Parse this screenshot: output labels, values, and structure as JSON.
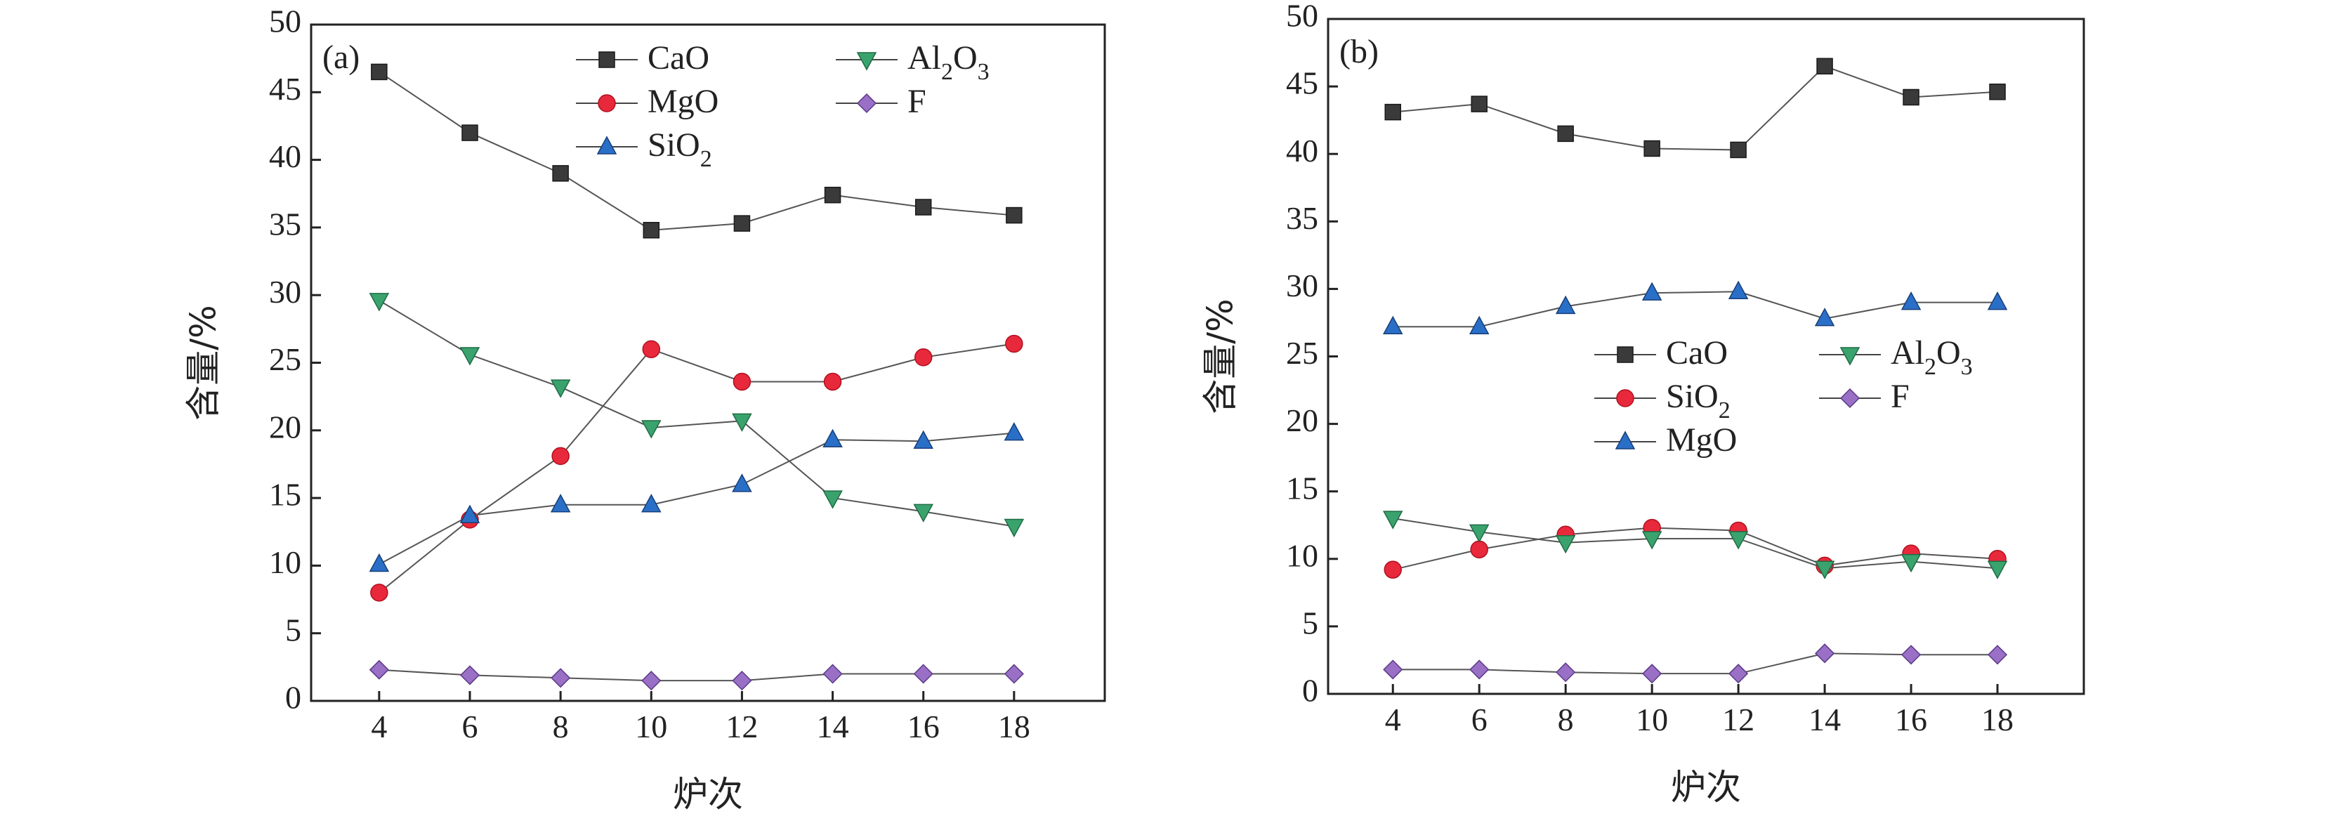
{
  "chart_data": [
    {
      "type": "line",
      "panel_label": "(a)",
      "xlabel": "炉次",
      "ylabel": "含量/%",
      "x": [
        4,
        6,
        8,
        10,
        12,
        14,
        16,
        18
      ],
      "xticks": [
        "4",
        "6",
        "8",
        "10",
        "12",
        "14",
        "16",
        "18"
      ],
      "yticks": [
        "0",
        "5",
        "10",
        "15",
        "20",
        "25",
        "30",
        "35",
        "40",
        "45",
        "50"
      ],
      "xlim": [
        2.5,
        20
      ],
      "ylim": [
        0,
        50
      ],
      "legend_position": "top-center",
      "series": [
        {
          "name": "CaO",
          "sub": "",
          "marker": "square",
          "color": "#3a3a3a",
          "values": [
            46.5,
            42.0,
            39.0,
            34.8,
            35.3,
            37.4,
            36.5,
            35.9
          ]
        },
        {
          "name": "MgO",
          "sub": "",
          "marker": "circle",
          "color": "#e8293b",
          "values": [
            8.0,
            13.4,
            18.1,
            26.0,
            23.6,
            23.6,
            25.4,
            26.4
          ]
        },
        {
          "name": "SiO",
          "sub": "2",
          "marker": "triangle-up",
          "color": "#2a6fc7",
          "values": [
            10.1,
            13.7,
            14.5,
            14.5,
            16.0,
            19.3,
            19.2,
            19.8
          ]
        },
        {
          "name": "Al",
          "sub": "2",
          "sub_tail": "O",
          "sub2": "3",
          "marker": "triangle-down",
          "color": "#3aa36d",
          "values": [
            29.6,
            25.6,
            23.2,
            20.2,
            20.7,
            15.0,
            14.0,
            12.9
          ]
        },
        {
          "name": "F",
          "sub": "",
          "marker": "diamond",
          "color": "#9a6fc6",
          "values": [
            2.3,
            1.9,
            1.7,
            1.5,
            1.5,
            2.0,
            2.0,
            2.0
          ]
        }
      ]
    },
    {
      "type": "line",
      "panel_label": "(b)",
      "xlabel": "炉次",
      "ylabel": "含量/%",
      "x": [
        4,
        6,
        8,
        10,
        12,
        14,
        16,
        18
      ],
      "xticks": [
        "4",
        "6",
        "8",
        "10",
        "12",
        "14",
        "16",
        "18"
      ],
      "yticks": [
        "0",
        "5",
        "10",
        "15",
        "20",
        "25",
        "30",
        "35",
        "40",
        "45",
        "50"
      ],
      "xlim": [
        2.5,
        20
      ],
      "ylim": [
        0,
        50
      ],
      "legend_position": "center-left",
      "series": [
        {
          "name": "CaO",
          "sub": "",
          "marker": "square",
          "color": "#3a3a3a",
          "values": [
            43.1,
            43.7,
            41.5,
            40.4,
            40.3,
            46.5,
            44.2,
            44.6
          ]
        },
        {
          "name": "SiO",
          "sub": "2",
          "marker": "circle",
          "color": "#e8293b",
          "values": [
            9.2,
            10.7,
            11.8,
            12.3,
            12.1,
            9.5,
            10.4,
            10.0
          ]
        },
        {
          "name": "MgO",
          "sub": "",
          "marker": "triangle-up",
          "color": "#2a6fc7",
          "values": [
            27.2,
            27.2,
            28.7,
            29.7,
            29.8,
            27.8,
            29.0,
            29.0
          ]
        },
        {
          "name": "Al",
          "sub": "2",
          "sub_tail": "O",
          "sub2": "3",
          "marker": "triangle-down",
          "color": "#3aa36d",
          "values": [
            13.0,
            12.0,
            11.2,
            11.5,
            11.5,
            9.3,
            9.8,
            9.3
          ]
        },
        {
          "name": "F",
          "sub": "",
          "marker": "diamond",
          "color": "#9a6fc6",
          "values": [
            1.8,
            1.8,
            1.6,
            1.5,
            1.5,
            3.0,
            2.9,
            2.9
          ]
        }
      ]
    }
  ]
}
